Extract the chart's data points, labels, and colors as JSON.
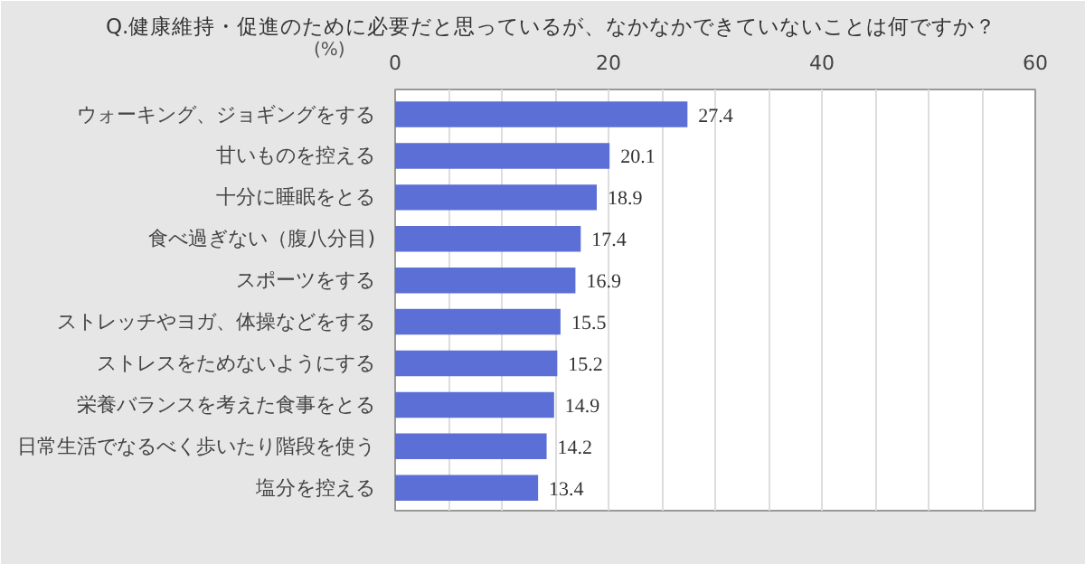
{
  "chart_data": {
    "type": "bar",
    "orientation": "horizontal",
    "title": "Q.健康維持・促進のために必要だと思っているが、なかなかできていないことは何ですか？",
    "xlabel": "(%)",
    "categories": [
      "ウォーキング、ジョギングをする",
      "甘いものを控える",
      "十分に睡眠をとる",
      "食べ過ぎない（腹八分目)",
      "スポーツをする",
      "ストレッチやヨガ、体操などをする",
      "ストレスをためないようにする",
      "栄養バランスを考えた食事をとる",
      "日常生活でなるべく歩いたり階段を使う",
      "塩分を控える"
    ],
    "values": [
      27.4,
      20.1,
      18.9,
      17.4,
      16.9,
      15.5,
      15.2,
      14.9,
      14.2,
      13.4
    ],
    "color": "#5b6fd6",
    "data_labels": true,
    "xlim": [
      0,
      60
    ],
    "xticks": [
      0,
      {
        "value": 5,
        "label": null
      },
      {
        "value": 10,
        "label": null
      },
      {
        "value": 15,
        "label": null
      },
      20,
      {
        "value": 25,
        "label": null
      },
      {
        "value": 30,
        "label": null
      },
      {
        "value": 35,
        "label": null
      },
      40,
      {
        "value": 45,
        "label": null
      },
      {
        "value": 50,
        "label": null
      },
      {
        "value": 55,
        "label": null
      },
      60
    ],
    "grid": "x"
  }
}
